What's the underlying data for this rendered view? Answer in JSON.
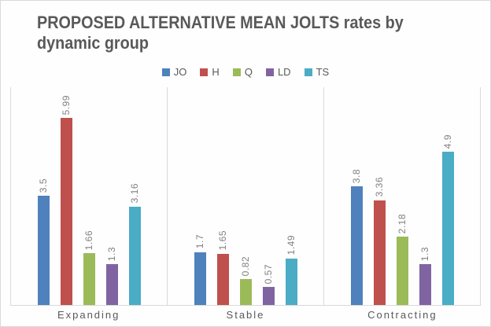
{
  "page": {
    "background": "#fefefe",
    "frame_border_color": "#d9d9d9",
    "axis_line_color": "#d9d9d9",
    "title_color": "#595959",
    "value_label_color": "#808080",
    "category_label_color": "#595959"
  },
  "title": {
    "text": "PROPOSED ALTERNATIVE MEAN JOLTS rates by dynamic group"
  },
  "chart_data": {
    "type": "bar",
    "title": "PROPOSED ALTERNATIVE MEAN JOLTS rates by dynamic group",
    "categories": [
      "Expanding",
      "Stable",
      "Contracting"
    ],
    "series": [
      {
        "name": "JO",
        "color": "#4F81BD",
        "values": [
          3.5,
          1.7,
          3.8
        ]
      },
      {
        "name": "H",
        "color": "#C0504D",
        "values": [
          5.99,
          1.65,
          3.36
        ]
      },
      {
        "name": "Q",
        "color": "#9BBB59",
        "values": [
          1.66,
          0.82,
          2.18
        ]
      },
      {
        "name": "LD",
        "color": "#8064A2",
        "values": [
          1.3,
          0.57,
          1.3
        ]
      },
      {
        "name": "TS",
        "color": "#4BACC6",
        "values": [
          3.16,
          1.49,
          4.9
        ]
      }
    ],
    "data_labels": {
      "Expanding": [
        "3.5",
        "5.99",
        "1.66",
        "1.3",
        "3.16"
      ],
      "Stable": [
        "1.7",
        "1.65",
        "0.82",
        "0.57",
        "1.49"
      ],
      "Contracting": [
        "3.8",
        "3.36",
        "2.18",
        "1.3",
        "4.9"
      ]
    },
    "xlabel": "",
    "ylabel": "",
    "ylim": [
      0,
      7
    ],
    "grid": false,
    "legend_position": "top-center",
    "bar_value_labels_rotated": true
  }
}
